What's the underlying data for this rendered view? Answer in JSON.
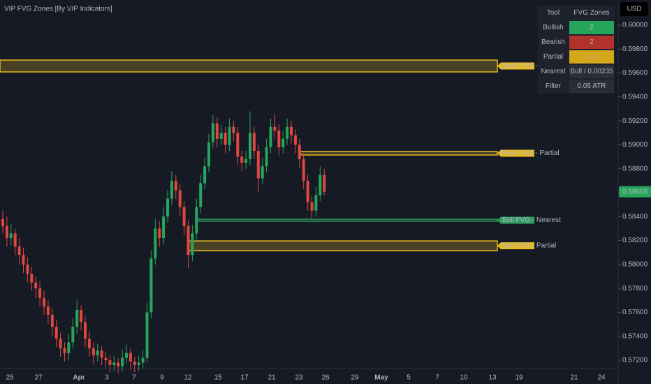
{
  "header": {
    "title": "VIP FVG Zones [By VIP Indicators]",
    "currency": "USD"
  },
  "chart_data": {
    "type": "candlestick",
    "up_color": "#26a65b",
    "down_color": "#e0473f",
    "ylim": [
      0.5713,
      0.6021
    ],
    "yticks": [
      {
        "value": 0.6,
        "label": "0.60000"
      },
      {
        "value": 0.598,
        "label": "0.59800"
      },
      {
        "value": 0.596,
        "label": "0.59600"
      },
      {
        "value": 0.594,
        "label": "0.59400"
      },
      {
        "value": 0.592,
        "label": "0.59200"
      },
      {
        "value": 0.59,
        "label": "0.59000"
      },
      {
        "value": 0.588,
        "label": "0.58800"
      },
      {
        "value": 0.586,
        "label": "0.58600"
      },
      {
        "value": 0.584,
        "label": "0.58400"
      },
      {
        "value": 0.582,
        "label": "0.58200"
      },
      {
        "value": 0.58,
        "label": "0.58000"
      },
      {
        "value": 0.578,
        "label": "0.57800"
      },
      {
        "value": 0.576,
        "label": "0.57600"
      },
      {
        "value": 0.574,
        "label": "0.57400"
      },
      {
        "value": 0.572,
        "label": "0.57200"
      }
    ],
    "x_labels": [
      "25",
      "27",
      "Apr",
      "3",
      "7",
      "9",
      "12",
      "15",
      "17",
      "21",
      "23",
      "26",
      "29",
      "May",
      "5",
      "7",
      "10",
      "13",
      "19",
      "21",
      "24"
    ],
    "last_price": 0.58608,
    "candles": [
      [
        0.5838,
        0.5845,
        0.5826,
        0.5832
      ],
      [
        0.5832,
        0.584,
        0.5815,
        0.5822
      ],
      [
        0.5822,
        0.5834,
        0.5816,
        0.5826
      ],
      [
        0.5826,
        0.583,
        0.5808,
        0.5815
      ],
      [
        0.5815,
        0.5822,
        0.58,
        0.5808
      ],
      [
        0.5808,
        0.5814,
        0.5793,
        0.58
      ],
      [
        0.58,
        0.5806,
        0.5785,
        0.5792
      ],
      [
        0.5792,
        0.5798,
        0.5778,
        0.5785
      ],
      [
        0.5785,
        0.579,
        0.5772,
        0.578
      ],
      [
        0.578,
        0.5786,
        0.5765,
        0.5772
      ],
      [
        0.5772,
        0.5778,
        0.5758,
        0.5765
      ],
      [
        0.5765,
        0.577,
        0.575,
        0.5758
      ],
      [
        0.5758,
        0.5764,
        0.574,
        0.5748
      ],
      [
        0.5748,
        0.5754,
        0.5731,
        0.5738
      ],
      [
        0.5738,
        0.5743,
        0.5723,
        0.573
      ],
      [
        0.573,
        0.5735,
        0.5719,
        0.5726
      ],
      [
        0.5726,
        0.5742,
        0.572,
        0.5735
      ],
      [
        0.5735,
        0.5755,
        0.573,
        0.5748
      ],
      [
        0.5748,
        0.577,
        0.5742,
        0.5762
      ],
      [
        0.5762,
        0.5766,
        0.5745,
        0.5752
      ],
      [
        0.5752,
        0.5757,
        0.5731,
        0.5738
      ],
      [
        0.5738,
        0.5744,
        0.5723,
        0.573
      ],
      [
        0.573,
        0.5735,
        0.5717,
        0.5724
      ],
      [
        0.5724,
        0.5734,
        0.5719,
        0.5728
      ],
      [
        0.5728,
        0.5732,
        0.5716,
        0.5722
      ],
      [
        0.5722,
        0.5727,
        0.5714,
        0.572
      ],
      [
        0.572,
        0.5724,
        0.571,
        0.5716
      ],
      [
        0.5716,
        0.5724,
        0.5711,
        0.5718
      ],
      [
        0.5718,
        0.5722,
        0.5709,
        0.5715
      ],
      [
        0.5715,
        0.5729,
        0.5711,
        0.5722
      ],
      [
        0.5722,
        0.5733,
        0.5717,
        0.5726
      ],
      [
        0.5726,
        0.573,
        0.5712,
        0.5719
      ],
      [
        0.5719,
        0.5723,
        0.571,
        0.5716
      ],
      [
        0.5716,
        0.5724,
        0.5711,
        0.5718
      ],
      [
        0.5718,
        0.5728,
        0.5713,
        0.5722
      ],
      [
        0.5722,
        0.5768,
        0.5718,
        0.576
      ],
      [
        0.576,
        0.5812,
        0.5755,
        0.5805
      ],
      [
        0.5805,
        0.5838,
        0.58,
        0.583
      ],
      [
        0.583,
        0.5836,
        0.5815,
        0.5822
      ],
      [
        0.5822,
        0.5848,
        0.5817,
        0.584
      ],
      [
        0.584,
        0.5862,
        0.5835,
        0.5855
      ],
      [
        0.5855,
        0.5878,
        0.585,
        0.587
      ],
      [
        0.587,
        0.5875,
        0.5855,
        0.5862
      ],
      [
        0.5862,
        0.5867,
        0.5841,
        0.5848
      ],
      [
        0.5848,
        0.5853,
        0.5825,
        0.5832
      ],
      [
        0.5832,
        0.5837,
        0.5797,
        0.5808
      ],
      [
        0.5808,
        0.5833,
        0.5803,
        0.5826
      ],
      [
        0.5826,
        0.5855,
        0.5821,
        0.5848
      ],
      [
        0.5848,
        0.5875,
        0.5843,
        0.5868
      ],
      [
        0.5868,
        0.5889,
        0.5863,
        0.5882
      ],
      [
        0.5882,
        0.5909,
        0.5877,
        0.5902
      ],
      [
        0.5902,
        0.5925,
        0.5897,
        0.5918
      ],
      [
        0.5918,
        0.5923,
        0.5898,
        0.5905
      ],
      [
        0.5905,
        0.5917,
        0.59,
        0.591
      ],
      [
        0.591,
        0.5915,
        0.5893,
        0.59
      ],
      [
        0.59,
        0.5922,
        0.5895,
        0.5915
      ],
      [
        0.5915,
        0.592,
        0.5903,
        0.591
      ],
      [
        0.591,
        0.5915,
        0.5883,
        0.589
      ],
      [
        0.589,
        0.5895,
        0.5878,
        0.5885
      ],
      [
        0.5885,
        0.5895,
        0.588,
        0.5888
      ],
      [
        0.5888,
        0.5928,
        0.5883,
        0.591
      ],
      [
        0.591,
        0.5915,
        0.5888,
        0.5895
      ],
      [
        0.5895,
        0.59,
        0.586,
        0.5872
      ],
      [
        0.5872,
        0.5889,
        0.5867,
        0.5882
      ],
      [
        0.5882,
        0.5905,
        0.5877,
        0.5898
      ],
      [
        0.5898,
        0.5922,
        0.5893,
        0.5915
      ],
      [
        0.5915,
        0.5926,
        0.5905,
        0.5912
      ],
      [
        0.5912,
        0.5917,
        0.5891,
        0.5898
      ],
      [
        0.5898,
        0.5912,
        0.5893,
        0.5905
      ],
      [
        0.5905,
        0.5922,
        0.59,
        0.5915
      ],
      [
        0.5915,
        0.592,
        0.5901,
        0.5908
      ],
      [
        0.5908,
        0.5913,
        0.5893,
        0.59
      ],
      [
        0.59,
        0.5905,
        0.5881,
        0.5888
      ],
      [
        0.5888,
        0.5893,
        0.5863,
        0.587
      ],
      [
        0.587,
        0.5875,
        0.5845,
        0.5852
      ],
      [
        0.5852,
        0.5857,
        0.5838,
        0.5845
      ],
      [
        0.5845,
        0.5865,
        0.584,
        0.5858
      ],
      [
        0.5858,
        0.5882,
        0.5853,
        0.5875
      ],
      [
        0.5875,
        0.588,
        0.5858,
        0.58608
      ]
    ],
    "zones": [
      {
        "label": "Bear FVG - Partial",
        "top": 0.59708,
        "bottom": 0.59609,
        "from_candle": 0,
        "color": "#e5b921"
      },
      {
        "label": "Bear FVG - Partial",
        "top": 0.58944,
        "bottom": 0.58915,
        "from_candle": 72,
        "color": "#e5b921"
      },
      {
        "label": "Bull FVG - Nearest",
        "top": 0.58378,
        "bottom": 0.58361,
        "from_candle": 47,
        "color": "#2e9e62"
      },
      {
        "label": "Bull FVG - Partial",
        "top": 0.58197,
        "bottom": 0.58116,
        "from_candle": 45,
        "color": "#e5b921"
      }
    ]
  },
  "table": {
    "header": [
      "Tool",
      "FVG Zones"
    ],
    "rows": [
      [
        "Bullish",
        2
      ],
      [
        "Bearish",
        2
      ],
      [
        "Partial",
        3
      ],
      [
        "Nearest",
        "Bull / 0.00235"
      ],
      [
        "Filter",
        "0.05 ATR"
      ]
    ]
  }
}
